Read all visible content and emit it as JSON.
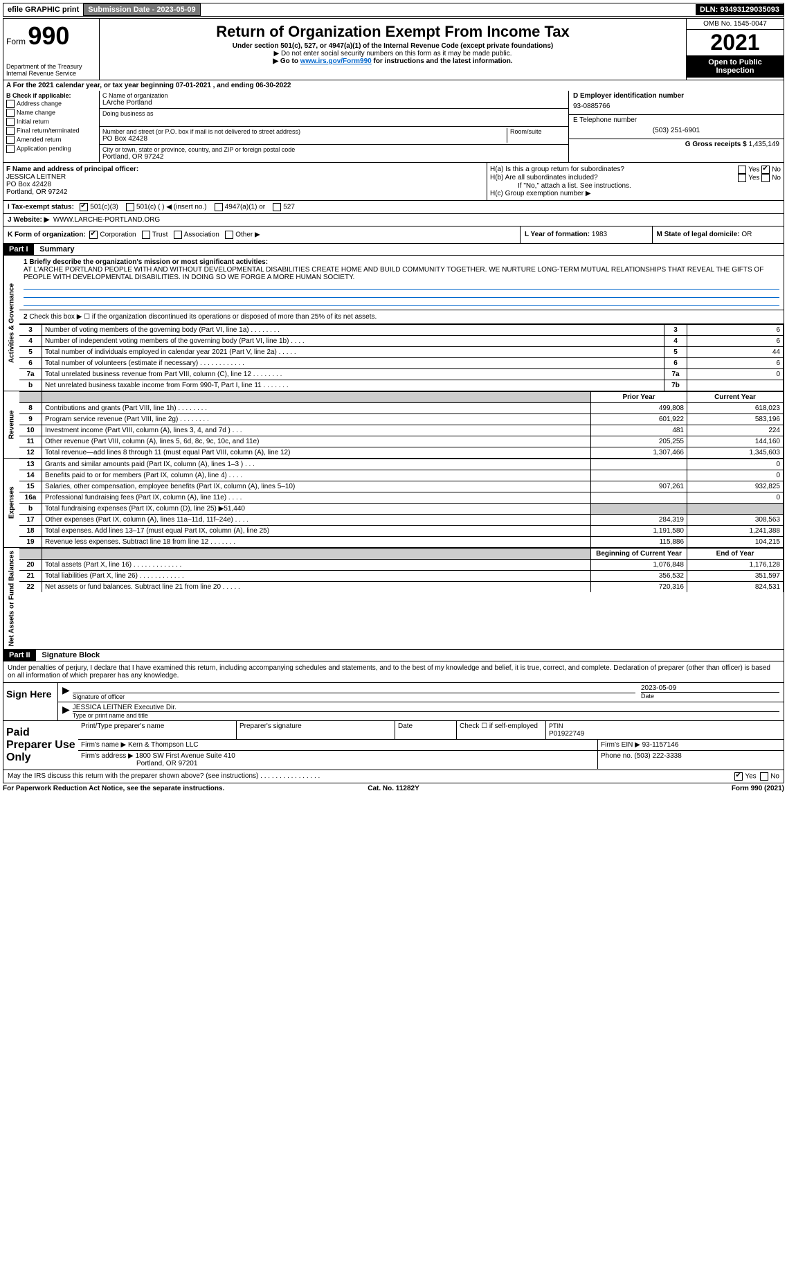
{
  "top_bar": {
    "efile": "efile GRAPHIC print",
    "submission_label": "Submission Date - 2023-05-09",
    "dln_label": "DLN: 93493129035093"
  },
  "header": {
    "form_prefix": "Form",
    "form_num": "990",
    "title": "Return of Organization Exempt From Income Tax",
    "subtitle": "Under section 501(c), 527, or 4947(a)(1) of the Internal Revenue Code (except private foundations)",
    "note1": "▶ Do not enter social security numbers on this form as it may be made public.",
    "note2_pre": "▶ Go to ",
    "note2_link": "www.irs.gov/Form990",
    "note2_post": " for instructions and the latest information.",
    "dept": "Department of the Treasury",
    "irs": "Internal Revenue Service",
    "omb": "OMB No. 1545-0047",
    "year": "2021",
    "open": "Open to Public Inspection"
  },
  "line_a": "For the 2021 calendar year, or tax year beginning 07-01-2021   , and ending 06-30-2022",
  "col_b": {
    "label": "B Check if applicable:",
    "items": [
      "Address change",
      "Name change",
      "Initial return",
      "Final return/terminated",
      "Amended return",
      "Application pending"
    ]
  },
  "col_c": {
    "name_label": "C Name of organization",
    "name": "LArche Portland",
    "dba_label": "Doing business as",
    "addr_label": "Number and street (or P.O. box if mail is not delivered to street address)",
    "room_label": "Room/suite",
    "addr": "PO Box 42428",
    "city_label": "City or town, state or province, country, and ZIP or foreign postal code",
    "city": "Portland, OR  97242"
  },
  "col_d": {
    "ein_label": "D Employer identification number",
    "ein": "93-0885766",
    "phone_label": "E Telephone number",
    "phone": "(503) 251-6901",
    "gross_label": "G Gross receipts $",
    "gross": "1,435,149"
  },
  "row_f": {
    "label": "F  Name and address of principal officer:",
    "name": "JESSICA LEITNER",
    "addr1": "PO Box 42428",
    "addr2": "Portland, OR  97242"
  },
  "row_h": {
    "a": "H(a)  Is this a group return for subordinates?",
    "b": "H(b)  Are all subordinates included?",
    "b_note": "If \"No,\" attach a list. See instructions.",
    "c": "H(c)  Group exemption number ▶",
    "yes": "Yes",
    "no": "No"
  },
  "row_i": {
    "label": "I  Tax-exempt status:",
    "opts": [
      "501(c)(3)",
      "501(c) (   ) ◀ (insert no.)",
      "4947(a)(1) or",
      "527"
    ]
  },
  "row_j": {
    "label": "J  Website: ▶",
    "val": "WWW.LARCHE-PORTLAND.ORG"
  },
  "row_k": {
    "label": "K Form of organization:",
    "opts": [
      "Corporation",
      "Trust",
      "Association",
      "Other ▶"
    ],
    "l_label": "L Year of formation:",
    "l_val": "1983",
    "m_label": "M State of legal domicile:",
    "m_val": "OR"
  },
  "part1": {
    "header": "Part I",
    "title": "Summary",
    "mission_label": "1  Briefly describe the organization's mission or most significant activities:",
    "mission": "AT L'ARCHE PORTLAND PEOPLE WITH AND WITHOUT DEVELOPMENTAL DISABILITIES CREATE HOME AND BUILD COMMUNITY TOGETHER. WE NURTURE LONG-TERM MUTUAL RELATIONSHIPS THAT REVEAL THE GIFTS OF PEOPLE WITH DEVELOPMENTAL DISABILITIES. IN DOING SO WE FORGE A MORE HUMAN SOCIETY.",
    "line2": "Check this box ▶ ☐  if the organization discontinued its operations or disposed of more than 25% of its net assets.",
    "governance": [
      {
        "n": "3",
        "d": "Number of voting members of the governing body (Part VI, line 1a)  .    .    .    .    .    .    .    .",
        "b": "3",
        "v": "6"
      },
      {
        "n": "4",
        "d": "Number of independent voting members of the governing body (Part VI, line 1b)   .    .    .    .",
        "b": "4",
        "v": "6"
      },
      {
        "n": "5",
        "d": "Total number of individuals employed in calendar year 2021 (Part V, line 2a)   .    .    .    .    .",
        "b": "5",
        "v": "44"
      },
      {
        "n": "6",
        "d": "Total number of volunteers (estimate if necessary)   .    .    .    .    .    .    .    .    .    .    .    .",
        "b": "6",
        "v": "6"
      },
      {
        "n": "7a",
        "d": "Total unrelated business revenue from Part VIII, column (C), line 12   .    .    .    .    .    .    .    .",
        "b": "7a",
        "v": "0"
      },
      {
        "n": "b",
        "d": "Net unrelated business taxable income from Form 990-T, Part I, line 11   .    .    .    .    .    .    .",
        "b": "7b",
        "v": ""
      }
    ],
    "prior_hdr": "Prior Year",
    "current_hdr": "Current Year",
    "revenue": [
      {
        "n": "8",
        "d": "Contributions and grants (Part VIII, line 1h)   .    .    .    .    .    .    .    .",
        "p": "499,808",
        "c": "618,023"
      },
      {
        "n": "9",
        "d": "Program service revenue (Part VIII, line 2g)   .    .    .    .    .    .    .    .",
        "p": "601,922",
        "c": "583,196"
      },
      {
        "n": "10",
        "d": "Investment income (Part VIII, column (A), lines 3, 4, and 7d )   .    .    .",
        "p": "481",
        "c": "224"
      },
      {
        "n": "11",
        "d": "Other revenue (Part VIII, column (A), lines 5, 6d, 8c, 9c, 10c, and 11e)",
        "p": "205,255",
        "c": "144,160"
      },
      {
        "n": "12",
        "d": "Total revenue—add lines 8 through 11 (must equal Part VIII, column (A), line 12)",
        "p": "1,307,466",
        "c": "1,345,603"
      }
    ],
    "expenses": [
      {
        "n": "13",
        "d": "Grants and similar amounts paid (Part IX, column (A), lines 1–3 )   .    .    .",
        "p": "",
        "c": "0"
      },
      {
        "n": "14",
        "d": "Benefits paid to or for members (Part IX, column (A), line 4)   .    .    .    .",
        "p": "",
        "c": "0"
      },
      {
        "n": "15",
        "d": "Salaries, other compensation, employee benefits (Part IX, column (A), lines 5–10)",
        "p": "907,261",
        "c": "932,825"
      },
      {
        "n": "16a",
        "d": "Professional fundraising fees (Part IX, column (A), line 11e)   .    .    .    .",
        "p": "",
        "c": "0"
      },
      {
        "n": "b",
        "d": "Total fundraising expenses (Part IX, column (D), line 25) ▶51,440",
        "p": "shade",
        "c": "shade"
      },
      {
        "n": "17",
        "d": "Other expenses (Part IX, column (A), lines 11a–11d, 11f–24e)   .    .    .    .",
        "p": "284,319",
        "c": "308,563"
      },
      {
        "n": "18",
        "d": "Total expenses. Add lines 13–17 (must equal Part IX, column (A), line 25)",
        "p": "1,191,580",
        "c": "1,241,388"
      },
      {
        "n": "19",
        "d": "Revenue less expenses. Subtract line 18 from line 12   .    .    .    .    .    .    .",
        "p": "115,886",
        "c": "104,215"
      }
    ],
    "begin_hdr": "Beginning of Current Year",
    "end_hdr": "End of Year",
    "netassets": [
      {
        "n": "20",
        "d": "Total assets (Part X, line 16)   .    .    .    .    .    .    .    .    .    .    .    .    .",
        "p": "1,076,848",
        "c": "1,176,128"
      },
      {
        "n": "21",
        "d": "Total liabilities (Part X, line 26)   .    .    .    .    .    .    .    .    .    .    .    .",
        "p": "356,532",
        "c": "351,597"
      },
      {
        "n": "22",
        "d": "Net assets or fund balances. Subtract line 21 from line 20   .    .    .    .    .",
        "p": "720,316",
        "c": "824,531"
      }
    ],
    "side_gov": "Activities & Governance",
    "side_rev": "Revenue",
    "side_exp": "Expenses",
    "side_net": "Net Assets or Fund Balances"
  },
  "part2": {
    "header": "Part II",
    "title": "Signature Block",
    "perjury": "Under penalties of perjury, I declare that I have examined this return, including accompanying schedules and statements, and to the best of my knowledge and belief, it is true, correct, and complete. Declaration of preparer (other than officer) is based on all information of which preparer has any knowledge.",
    "sign_here": "Sign Here",
    "sig_officer": "Signature of officer",
    "sig_date": "2023-05-09",
    "date_label": "Date",
    "typed_name": "JESSICA LEITNER  Executive Dir.",
    "typed_label": "Type or print name and title",
    "paid_label": "Paid Preparer Use Only",
    "prep_name_label": "Print/Type preparer's name",
    "prep_sig_label": "Preparer's signature",
    "prep_date_label": "Date",
    "prep_check": "Check ☐ if self-employed",
    "ptin_label": "PTIN",
    "ptin": "P01922749",
    "firm_name_label": "Firm's name    ▶",
    "firm_name": "Kern & Thompson LLC",
    "firm_ein_label": "Firm's EIN ▶",
    "firm_ein": "93-1157146",
    "firm_addr_label": "Firm's address ▶",
    "firm_addr1": "1800 SW First Avenue Suite 410",
    "firm_addr2": "Portland, OR  97201",
    "firm_phone_label": "Phone no.",
    "firm_phone": "(503) 222-3338",
    "discuss": "May the IRS discuss this return with the preparer shown above? (see instructions)   .    .    .    .    .    .    .    .    .    .    .    .    .    .    .    .",
    "discuss_yes": "Yes",
    "discuss_no": "No"
  },
  "footer": {
    "pra": "For Paperwork Reduction Act Notice, see the separate instructions.",
    "cat": "Cat. No. 11282Y",
    "form": "Form 990 (2021)"
  }
}
